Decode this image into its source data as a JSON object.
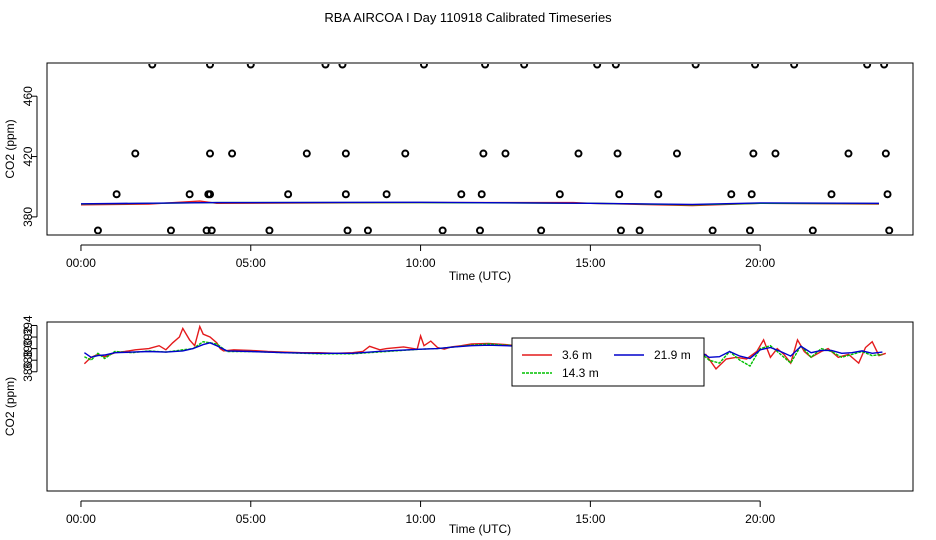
{
  "title": "RBA AIRCOA I  Day 110918  Calibrated Timeseries",
  "chart_data": [
    {
      "type": "scatter",
      "xlabel": "Time (UTC)",
      "ylabel": "CO2 (ppm)",
      "xlim": [
        -1.0,
        24.5
      ],
      "ylim": [
        368,
        482
      ],
      "x_tick_labels": [
        "00:00",
        "05:00",
        "10:00",
        "15:00",
        "20:00"
      ],
      "x_tick_values": [
        0,
        5,
        10,
        15,
        20
      ],
      "y_tick_values": [
        380,
        420,
        460
      ],
      "grid": false,
      "legend": "none",
      "calibration_points": {
        "x": [
          0.5,
          1.05,
          1.6,
          2.1,
          2.65,
          3.2,
          3.7,
          3.75,
          3.8,
          3.8,
          3.8,
          3.85,
          4.45,
          5.0,
          5.55,
          6.1,
          6.65,
          7.2,
          7.7,
          7.8,
          7.8,
          7.85,
          8.45,
          9.0,
          9.55,
          10.1,
          10.65,
          11.2,
          11.75,
          11.8,
          11.85,
          11.9,
          12.5,
          13.05,
          13.55,
          14.1,
          14.65,
          15.2,
          15.75,
          15.8,
          15.85,
          15.9,
          16.45,
          17.0,
          17.55,
          18.1,
          18.6,
          19.15,
          19.7,
          19.75,
          19.8,
          19.85,
          20.45,
          21.0,
          21.55,
          22.1,
          22.6,
          23.15,
          23.65,
          23.7,
          23.75,
          23.8
        ],
        "y": [
          371,
          395,
          422,
          481,
          371,
          395,
          371,
          395,
          395,
          422,
          481,
          371,
          422,
          481,
          371,
          395,
          422,
          481,
          481,
          422,
          395,
          371,
          371,
          395,
          422,
          481,
          371,
          395,
          371,
          395,
          422,
          481,
          422,
          481,
          371,
          395,
          422,
          481,
          481,
          422,
          395,
          371,
          371,
          395,
          422,
          481,
          371,
          395,
          371,
          395,
          422,
          481,
          422,
          481,
          371,
          395,
          422,
          481,
          481,
          422,
          395,
          371
        ]
      },
      "series": [
        {
          "name": "",
          "color": "#e41a1c",
          "x": [
            0,
            2,
            3.5,
            4,
            10,
            14.5,
            15,
            18,
            20,
            23.5
          ],
          "y": [
            388.0,
            388.5,
            390.5,
            389.0,
            389.5,
            389.5,
            389.0,
            387.5,
            389.0,
            388.5
          ]
        },
        {
          "name": "",
          "color": "#00c000",
          "x": [
            0,
            4,
            10,
            15,
            18,
            20,
            23.5
          ],
          "y": [
            388.5,
            389.5,
            389.5,
            389.0,
            388.0,
            389.0,
            388.8
          ]
        },
        {
          "name": "",
          "color": "#0000cc",
          "x": [
            0,
            4,
            10,
            15,
            18,
            20,
            23.5
          ],
          "y": [
            388.7,
            389.5,
            389.7,
            389.0,
            388.3,
            389.3,
            389.0
          ]
        }
      ]
    },
    {
      "type": "line",
      "xlabel": "Time (UTC)",
      "ylabel": "CO2 (ppm)",
      "xlim": [
        -1.0,
        24.5
      ],
      "ylim": [
        365.4,
        394.6
      ],
      "x_tick_labels": [
        "00:00",
        "05:00",
        "10:00",
        "15:00",
        "20:00"
      ],
      "x_tick_values": [
        0,
        5,
        10,
        15,
        20
      ],
      "y_tick_values": [
        386,
        388,
        390,
        392,
        394
      ],
      "grid": false,
      "legend": "top-center",
      "series": [
        {
          "name": "3.6 m",
          "color": "#e41a1c",
          "x": [
            0.1,
            0.3,
            0.5,
            0.7,
            1.0,
            1.3,
            1.6,
            2.0,
            2.3,
            2.5,
            2.7,
            2.9,
            3.0,
            3.2,
            3.35,
            3.5,
            3.6,
            3.8,
            4.0,
            4.1,
            4.2,
            4.5,
            5.0,
            5.5,
            6.0,
            6.5,
            7.0,
            7.5,
            8.0,
            8.3,
            8.5,
            8.8,
            9.0,
            9.5,
            9.9,
            10.0,
            10.1,
            10.3,
            10.5,
            10.7,
            10.9,
            11.2,
            11.5,
            12.0,
            12.5,
            13.0,
            13.5,
            13.8,
            14.0,
            14.3,
            14.6,
            14.9,
            15.1,
            15.3,
            15.6,
            15.9,
            16.2,
            16.5,
            16.8,
            17.0,
            17.3,
            17.6,
            17.9,
            18.1,
            18.4,
            18.7,
            19.0,
            19.3,
            19.6,
            19.9,
            20.1,
            20.3,
            20.5,
            20.7,
            20.9,
            21.1,
            21.3,
            21.5,
            21.8,
            22.0,
            22.3,
            22.6,
            22.9,
            23.1,
            23.3,
            23.5,
            23.7
          ],
          "y": [
            387.4,
            388.5,
            389.0,
            388.6,
            389.3,
            389.5,
            389.8,
            390.0,
            390.5,
            389.8,
            391.0,
            392.0,
            393.5,
            391.5,
            390.5,
            393.8,
            392.5,
            392.0,
            391.0,
            390.0,
            389.6,
            389.8,
            389.7,
            389.5,
            389.4,
            389.3,
            389.3,
            389.2,
            389.3,
            389.5,
            390.4,
            389.8,
            390.0,
            390.3,
            389.9,
            392.2,
            390.5,
            391.3,
            390.2,
            389.9,
            390.3,
            390.5,
            390.8,
            390.9,
            390.7,
            390.4,
            389.8,
            389.5,
            389.7,
            389.5,
            389.0,
            388.5,
            388.0,
            387.5,
            387.0,
            386.8,
            387.6,
            386.5,
            387.5,
            386.0,
            387.8,
            387.0,
            385.7,
            388.0,
            389.0,
            386.5,
            388.2,
            388.5,
            388.2,
            389.5,
            391.5,
            388.5,
            390.0,
            389.0,
            387.5,
            391.5,
            389.5,
            388.5,
            389.5,
            390.0,
            388.5,
            389.0,
            387.5,
            390.2,
            391.2,
            388.8,
            389.2
          ]
        },
        {
          "name": "14.3 m",
          "color": "#00c000",
          "x": [
            0.1,
            0.3,
            0.5,
            0.7,
            1.0,
            1.5,
            2.0,
            2.5,
            3.0,
            3.3,
            3.6,
            3.8,
            4.0,
            4.3,
            5.0,
            6.0,
            7.0,
            8.0,
            9.0,
            10.0,
            10.5,
            11.0,
            11.5,
            12.0,
            12.5,
            13.0,
            13.5,
            14.0,
            14.3,
            14.6,
            15.0,
            15.3,
            15.6,
            15.9,
            16.2,
            16.5,
            16.8,
            17.0,
            17.3,
            17.6,
            17.9,
            18.2,
            18.5,
            18.8,
            19.1,
            19.4,
            19.7,
            20.0,
            20.3,
            20.6,
            20.9,
            21.2,
            21.5,
            21.8,
            22.1,
            22.4,
            22.7,
            23.0,
            23.3,
            23.6
          ],
          "y": [
            388.6,
            388.0,
            389.2,
            388.3,
            389.5,
            389.3,
            389.6,
            389.4,
            389.8,
            390.0,
            391.2,
            391.0,
            390.8,
            389.5,
            389.5,
            389.3,
            389.1,
            389.1,
            389.5,
            389.9,
            390.0,
            390.3,
            390.6,
            390.8,
            390.6,
            390.5,
            390.3,
            389.8,
            389.5,
            389.5,
            388.8,
            388.5,
            387.5,
            388.5,
            387.0,
            388.5,
            386.0,
            388.0,
            387.5,
            389.0,
            387.0,
            389.5,
            388.0,
            387.5,
            389.5,
            388.0,
            387.0,
            390.0,
            390.5,
            389.0,
            387.5,
            390.5,
            388.5,
            390.0,
            389.5,
            388.5,
            389.0,
            389.5,
            388.8,
            389.0
          ]
        },
        {
          "name": "21.9 m",
          "color": "#0000cc",
          "x": [
            0.1,
            0.3,
            0.5,
            0.7,
            1.0,
            1.5,
            2.0,
            2.5,
            3.0,
            3.3,
            3.6,
            3.8,
            4.0,
            4.3,
            5.0,
            6.0,
            7.0,
            8.0,
            9.0,
            10.0,
            10.5,
            11.0,
            11.5,
            12.0,
            12.5,
            13.0,
            13.5,
            14.0,
            14.3,
            14.6,
            15.0,
            15.3,
            15.6,
            15.9,
            16.2,
            16.5,
            16.8,
            17.0,
            17.3,
            17.6,
            17.9,
            18.2,
            18.5,
            18.8,
            19.1,
            19.4,
            19.7,
            20.0,
            20.3,
            20.6,
            20.9,
            21.2,
            21.5,
            21.8,
            22.1,
            22.4,
            22.7,
            23.0,
            23.3,
            23.6
          ],
          "y": [
            389.3,
            388.5,
            388.8,
            388.9,
            389.3,
            389.4,
            389.5,
            389.4,
            389.6,
            390.0,
            390.7,
            391.0,
            390.5,
            389.6,
            389.5,
            389.3,
            389.2,
            389.2,
            389.6,
            389.9,
            390.0,
            390.3,
            390.5,
            390.6,
            390.5,
            390.4,
            390.3,
            390.0,
            389.8,
            389.6,
            389.0,
            388.8,
            388.5,
            388.9,
            388.3,
            388.9,
            387.2,
            388.4,
            388.5,
            389.3,
            388.0,
            389.6,
            388.5,
            388.6,
            389.5,
            388.7,
            388.3,
            389.8,
            390.2,
            389.5,
            388.7,
            390.4,
            389.3,
            389.7,
            389.7,
            389.2,
            389.3,
            389.6,
            389.2,
            389.4
          ]
        }
      ]
    }
  ]
}
